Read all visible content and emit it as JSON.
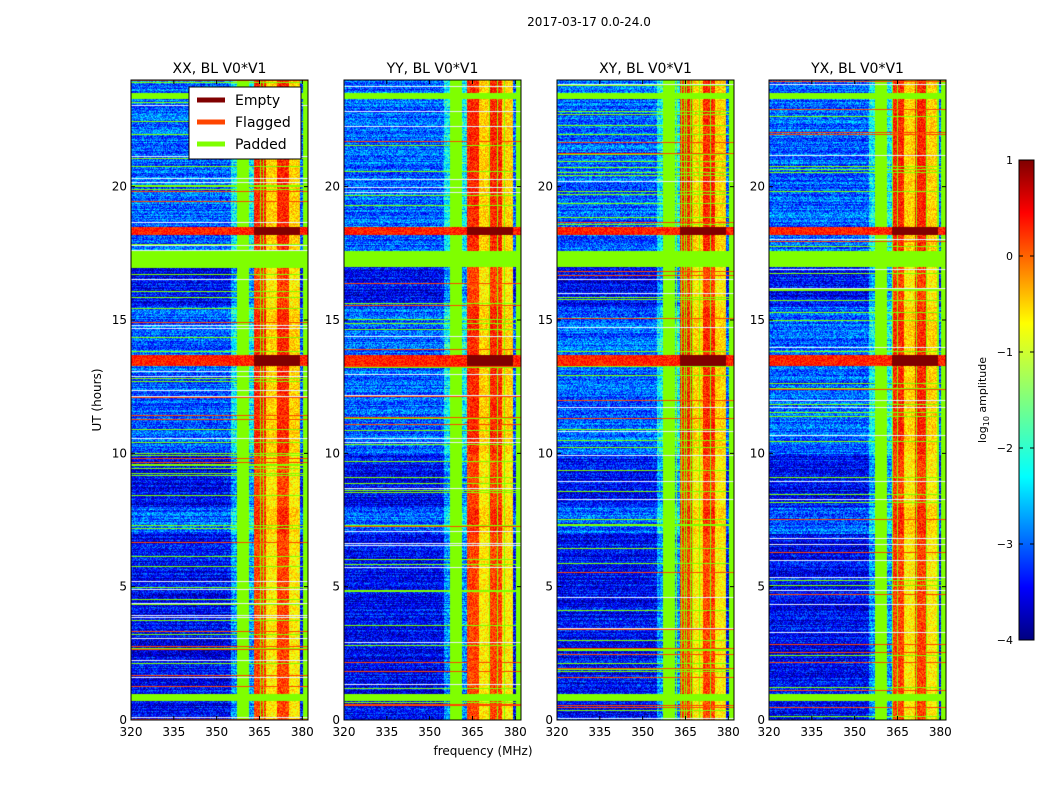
{
  "chart_data": {
    "type": "heatmap",
    "suptitle": "2017-03-17 0.0-24.0",
    "xlabel": "frequency (MHz)",
    "ylabel": "UT (hours)",
    "xlim": [
      320,
      382
    ],
    "ylim": [
      0,
      24
    ],
    "xticks": [
      320,
      335,
      350,
      365,
      380
    ],
    "yticks": [
      0,
      5,
      10,
      15,
      20
    ],
    "panels": [
      {
        "title": "XX, BL V0*V1"
      },
      {
        "title": "YY, BL V0*V1"
      },
      {
        "title": "XY, BL V0*V1"
      },
      {
        "title": "YX, BL V0*V1"
      }
    ],
    "legend": {
      "location": "top-right of first panel",
      "entries": [
        {
          "label": "Empty",
          "color": "#800000"
        },
        {
          "label": "Flagged",
          "color": "#ff4500"
        },
        {
          "label": "Padded",
          "color": "#7fff00"
        }
      ]
    },
    "colorbar": {
      "label": "log10 amplitude",
      "label_base": "log",
      "label_sub": "10",
      "label_rest": " amplitude",
      "range": [
        -4,
        1
      ],
      "ticks": [
        1,
        0,
        -1,
        -2,
        -3,
        -4
      ],
      "tick_labels": [
        "1",
        "0",
        "−1",
        "−2",
        "−3",
        "−4"
      ],
      "colormap": "jet"
    },
    "structure": {
      "padded_time_bands_hours": [
        [
          17.0,
          17.6
        ],
        [
          23.3,
          23.55
        ],
        [
          0.75,
          1.0
        ]
      ],
      "empty_time_bands_hours": [
        [
          18.2,
          18.5
        ],
        [
          13.3,
          13.7
        ]
      ],
      "strong_rfi_freq_band_mhz": [
        363,
        379
      ],
      "padded_freq_columns_mhz": [
        [
          357,
          361
        ],
        [
          380,
          382
        ]
      ],
      "low_quality_periods_hours": [
        [
          0,
          7
        ],
        [
          8,
          10
        ],
        [
          15.5,
          17
        ]
      ]
    }
  }
}
